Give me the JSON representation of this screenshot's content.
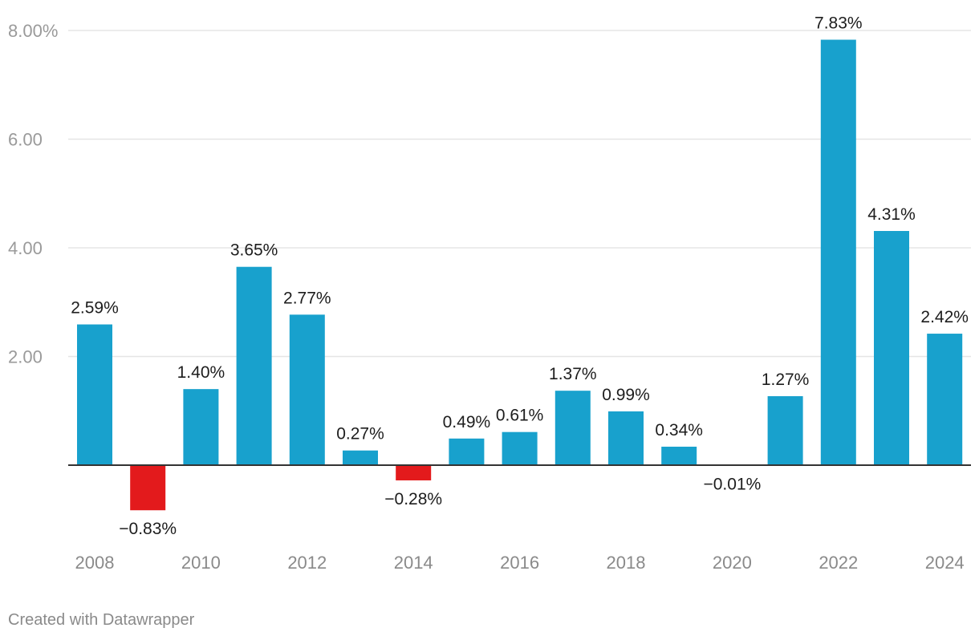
{
  "chart_data": {
    "type": "bar",
    "title": "",
    "xlabel": "",
    "ylabel": "",
    "categories": [
      "2008",
      "2009",
      "2010",
      "2011",
      "2012",
      "2013",
      "2014",
      "2015",
      "2016",
      "2017",
      "2018",
      "2019",
      "2020",
      "2021",
      "2022",
      "2023",
      "2024"
    ],
    "values": [
      2.59,
      -0.83,
      1.4,
      3.65,
      2.77,
      0.27,
      -0.28,
      0.49,
      0.61,
      1.37,
      0.99,
      0.34,
      -0.01,
      1.27,
      7.83,
      4.31,
      2.42
    ],
    "data_labels": [
      "2.59%",
      "−0.83%",
      "1.40%",
      "3.65%",
      "2.77%",
      "0.27%",
      "−0.28%",
      "0.49%",
      "0.61%",
      "1.37%",
      "0.99%",
      "0.34%",
      "−0.01%",
      "1.27%",
      "7.83%",
      "4.31%",
      "2.42%"
    ],
    "x_tick_labels": [
      "2008",
      "2010",
      "2012",
      "2014",
      "2016",
      "2018",
      "2020",
      "2022",
      "2024"
    ],
    "y_ticks": [
      2,
      4,
      6,
      8
    ],
    "y_tick_labels": [
      "2.00",
      "4.00",
      "6.00",
      "8.00%"
    ],
    "ylim": [
      -1.2,
      8.3
    ],
    "grid": true,
    "legend": "none",
    "colors": {
      "positive": "#18a1cd",
      "negative": "#e31a1c",
      "grid": "#e5e5e5",
      "baseline": "#333333"
    }
  },
  "footer": {
    "credit": "Created with Datawrapper"
  }
}
